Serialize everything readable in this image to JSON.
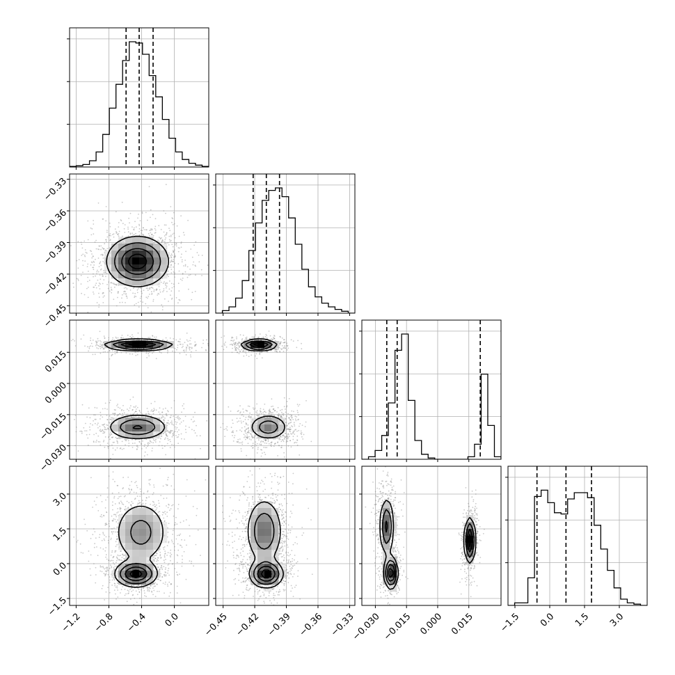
{
  "chart_data": {
    "type": "corner",
    "parameters": [
      {
        "ticks": [
          -1.2,
          -0.8,
          -0.4,
          0.0
        ],
        "tick_labels": [
          "−1.2",
          "−0.8",
          "−0.4",
          "0.0"
        ],
        "range": [
          -1.28,
          0.42
        ]
      },
      {
        "ticks": [
          -0.45,
          -0.42,
          -0.39,
          -0.36,
          -0.33
        ],
        "tick_labels": [
          "−0.45",
          "−0.42",
          "−0.39",
          "−0.36",
          "−0.33"
        ],
        "range": [
          -0.457,
          -0.325
        ]
      },
      {
        "ticks": [
          -0.03,
          -0.015,
          0.0,
          0.015
        ],
        "tick_labels": [
          "−0.030",
          "−0.015",
          "0.000",
          "0.015"
        ],
        "range": [
          -0.0365,
          0.0305
        ]
      },
      {
        "ticks": [
          -1.5,
          0.0,
          1.5,
          3.0
        ],
        "tick_labels": [
          "−1.5",
          "0.0",
          "1.5",
          "3.0"
        ],
        "range": [
          -1.8,
          4.2
        ]
      }
    ],
    "quantiles": [
      [
        -0.59,
        -0.43,
        -0.26
      ],
      [
        -0.4215,
        -0.409,
        -0.3965
      ],
      [
        -0.0245,
        -0.0195,
        0.0205
      ],
      [
        -0.55,
        0.7,
        1.8
      ]
    ],
    "histograms": [
      [
        0.005,
        0.01,
        0.02,
        0.05,
        0.12,
        0.26,
        0.47,
        0.66,
        0.85,
        1.0,
        0.99,
        0.9,
        0.73,
        0.56,
        0.38,
        0.23,
        0.12,
        0.06,
        0.03,
        0.015,
        0.005
      ],
      [
        0.0,
        0.02,
        0.05,
        0.12,
        0.26,
        0.5,
        0.72,
        0.9,
        0.98,
        1.0,
        0.93,
        0.76,
        0.55,
        0.35,
        0.21,
        0.13,
        0.08,
        0.05,
        0.03,
        0.015,
        0.0
      ],
      [
        0.0,
        0.02,
        0.07,
        0.19,
        0.45,
        0.87,
        1.0,
        0.47,
        0.15,
        0.04,
        0.01,
        0.0,
        0.0,
        0.0,
        0.0,
        0.0,
        0.02,
        0.12,
        0.68,
        0.27,
        0.02
      ],
      [
        0.0,
        0.02,
        0.02,
        0.22,
        0.87,
        0.92,
        0.82,
        0.74,
        0.73,
        0.85,
        0.9,
        0.9,
        0.86,
        0.64,
        0.45,
        0.28,
        0.14,
        0.05,
        0.02,
        0.01,
        0.0
      ]
    ],
    "modes": [
      {
        "pair": [
          0,
          1
        ],
        "blobs": [
          {
            "cx": -0.45,
            "cy": -0.408,
            "sx": 0.19,
            "sy": 0.012,
            "w": 1.0
          }
        ]
      },
      {
        "pair": [
          0,
          2
        ],
        "blobs": [
          {
            "cx": -0.44,
            "cy": 0.0185,
            "sx": 0.21,
            "sy": 0.0013,
            "w": 0.42
          },
          {
            "cx": -0.45,
            "cy": -0.021,
            "sx": 0.19,
            "sy": 0.0032,
            "w": 0.58
          }
        ]
      },
      {
        "pair": [
          1,
          2
        ],
        "blobs": [
          {
            "cx": -0.416,
            "cy": 0.0185,
            "sx": 0.0085,
            "sy": 0.0013,
            "w": 0.42
          },
          {
            "cx": -0.407,
            "cy": -0.021,
            "sx": 0.0095,
            "sy": 0.0032,
            "w": 0.58
          }
        ]
      },
      {
        "pair": [
          0,
          3
        ],
        "blobs": [
          {
            "cx": -0.41,
            "cy": 1.35,
            "sx": 0.18,
            "sy": 0.75,
            "w": 0.62
          },
          {
            "cx": -0.47,
            "cy": -0.45,
            "sx": 0.13,
            "sy": 0.28,
            "w": 0.38
          }
        ]
      },
      {
        "pair": [
          1,
          3
        ],
        "blobs": [
          {
            "cx": -0.411,
            "cy": 1.4,
            "sx": 0.009,
            "sy": 0.75,
            "w": 0.62
          },
          {
            "cx": -0.409,
            "cy": -0.45,
            "sx": 0.008,
            "sy": 0.3,
            "w": 0.38
          }
        ]
      },
      {
        "pair": [
          2,
          3
        ],
        "blobs": [
          {
            "cx": -0.0245,
            "cy": 1.6,
            "sx": 0.0018,
            "sy": 0.65,
            "w": 0.38
          },
          {
            "cx": -0.0225,
            "cy": -0.4,
            "sx": 0.0016,
            "sy": 0.35,
            "w": 0.3
          },
          {
            "cx": 0.0155,
            "cy": 1.0,
            "sx": 0.0013,
            "sy": 0.5,
            "w": 0.32
          }
        ]
      }
    ],
    "grid": true,
    "histogram_yticks": false
  }
}
